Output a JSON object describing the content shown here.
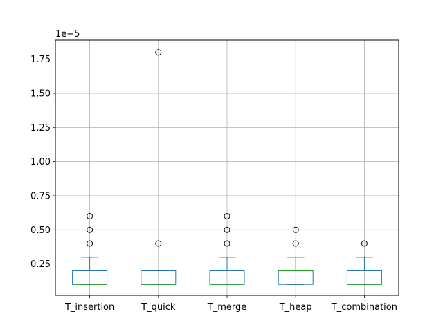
{
  "chart_data": {
    "type": "box",
    "offset_text": "1e−5",
    "categories": [
      "T_insertion",
      "T_quick",
      "T_merge",
      "T_heap",
      "T_combination"
    ],
    "ylim": [
      0.02,
      1.89
    ],
    "yticks": [
      0.25,
      0.5,
      0.75,
      1.0,
      1.25,
      1.5,
      1.75
    ],
    "ytick_labels": [
      "0.25",
      "0.50",
      "0.75",
      "1.00",
      "1.25",
      "1.50",
      "1.75"
    ],
    "grid": true,
    "boxes": [
      {
        "name": "T_insertion",
        "whislo": 0.1,
        "q1": 0.1,
        "med": 0.1,
        "q3": 0.2,
        "whishi": 0.3,
        "fliers": [
          0.4,
          0.5,
          0.6
        ]
      },
      {
        "name": "T_quick",
        "whislo": 0.1,
        "q1": 0.1,
        "med": 0.1,
        "q3": 0.2,
        "whishi": 0.2,
        "fliers": [
          0.4,
          1.8
        ]
      },
      {
        "name": "T_merge",
        "whislo": 0.1,
        "q1": 0.1,
        "med": 0.1,
        "q3": 0.2,
        "whishi": 0.3,
        "fliers": [
          0.4,
          0.5,
          0.6
        ]
      },
      {
        "name": "T_heap",
        "whislo": 0.1,
        "q1": 0.1,
        "med": 0.2,
        "q3": 0.2,
        "whishi": 0.3,
        "fliers": [
          0.4,
          0.5
        ]
      },
      {
        "name": "T_combination",
        "whislo": 0.1,
        "q1": 0.1,
        "med": 0.1,
        "q3": 0.2,
        "whishi": 0.3,
        "fliers": [
          0.4
        ]
      }
    ],
    "colors": {
      "box": "#1f77b4",
      "median": "#2ca02c",
      "grid": "#b0b0b0",
      "flier": "#000000",
      "whisker": "#1f77b4",
      "cap": "#000000"
    }
  }
}
